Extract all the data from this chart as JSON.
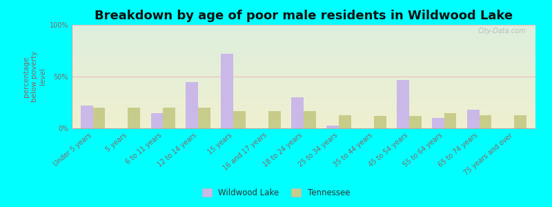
{
  "title": "Breakdown by age of poor male residents in Wildwood Lake",
  "ylabel": "percentage\nbelow poverty\nlevel",
  "categories": [
    "Under 5 years",
    "5 years",
    "6 to 11 years",
    "12 to 14 years",
    "15 years",
    "16 and 17 years",
    "18 to 24 years",
    "25 to 34 years",
    "35 to 44 years",
    "45 to 54 years",
    "55 to 64 years",
    "65 to 74 years",
    "75 years and over"
  ],
  "wildwood_values": [
    22,
    0,
    15,
    45,
    72,
    0,
    30,
    3,
    0,
    47,
    10,
    18,
    0
  ],
  "tennessee_values": [
    20,
    20,
    20,
    20,
    17,
    17,
    17,
    13,
    12,
    12,
    15,
    13,
    13
  ],
  "wildwood_color": "#c9b8e8",
  "tennessee_color": "#c8cc8a",
  "bg_top_color": "#ddeedd",
  "bg_bottom_color": "#f0f0d0",
  "outer_bg_color": "#00ffff",
  "ylim": [
    0,
    100
  ],
  "yticks": [
    0,
    50,
    100
  ],
  "ytick_labels": [
    "0%",
    "50%",
    "100%"
  ],
  "bar_width": 0.35,
  "title_fontsize": 13,
  "axis_label_fontsize": 7.5,
  "tick_fontsize": 7,
  "legend_labels": [
    "Wildwood Lake",
    "Tennessee"
  ],
  "watermark": "City-Data.com",
  "hline50_color": "#e8c0c0",
  "hline100_color": "#e8c0c0",
  "spine_color": "#aaaaaa",
  "tick_label_color": "#886666",
  "ylabel_color": "#886666"
}
